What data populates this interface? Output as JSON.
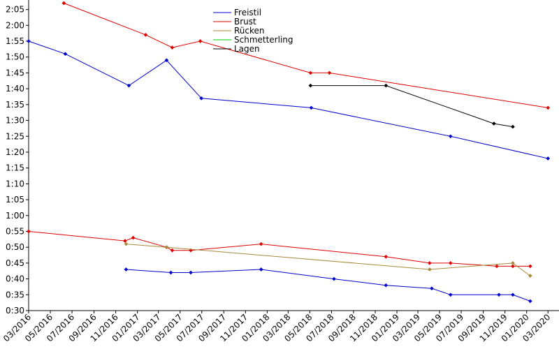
{
  "chart_data": {
    "type": "line",
    "title": "",
    "xlabel": "",
    "ylabel": "",
    "ylim": [
      "0:30",
      "2:08"
    ],
    "xlim": [
      "2016-03-01",
      "2020-04-01"
    ],
    "grid": false,
    "legend_position": "top-center",
    "x_tick_labels": [
      "03/2016",
      "05/2016",
      "07/2016",
      "09/2016",
      "11/2016",
      "01/2017",
      "03/2017",
      "05/2017",
      "07/2017",
      "09/2017",
      "11/2017",
      "01/2018",
      "03/2018",
      "05/2018",
      "07/2018",
      "09/2018",
      "11/2018",
      "01/2019",
      "03/2019",
      "05/2019",
      "07/2019",
      "09/2019",
      "11/2019",
      "01/2020",
      "03/2020"
    ],
    "y_tick_labels": [
      "0:30",
      "0:35",
      "0:40",
      "0:45",
      "0:50",
      "0:55",
      "1:00",
      "1:05",
      "1:10",
      "1:15",
      "1:20",
      "1:25",
      "1:30",
      "1:35",
      "1:40",
      "1:45",
      "1:50",
      "1:55",
      "2:00",
      "2:05"
    ],
    "legend": [
      "Freistil",
      "Brust",
      "Rücken",
      "Schmetterling",
      "Lagen"
    ],
    "series": [
      {
        "name": "Freistil",
        "color": "#0000cc",
        "points": [
          [
            "2016-03-01",
            "1:55"
          ],
          [
            "2016-06-12",
            "1:51"
          ],
          [
            "2016-12-08",
            "1:41"
          ],
          [
            "2017-03-24",
            "1:49"
          ],
          [
            "2017-06-30",
            "1:37"
          ],
          [
            "2018-05-05",
            "1:34"
          ],
          [
            "2019-06-01",
            "1:25"
          ],
          [
            "2020-03-01",
            "1:18"
          ]
        ]
      },
      {
        "name": "Brust",
        "color": "#dd0000",
        "points": [
          [
            "2016-06-08",
            "2:07"
          ],
          [
            "2017-01-24",
            "1:57"
          ],
          [
            "2017-04-09",
            "1:53"
          ],
          [
            "2017-06-27",
            "1:55"
          ],
          [
            "2018-05-03",
            "1:45"
          ],
          [
            "2018-06-25",
            "1:45"
          ],
          [
            "2020-03-01",
            "1:34"
          ]
        ]
      },
      {
        "name": "Freistil",
        "color": "#0000cc",
        "points": [
          [
            "2016-11-30",
            "0:43"
          ],
          [
            "2017-04-05",
            "0:42"
          ],
          [
            "2017-05-31",
            "0:42"
          ],
          [
            "2017-12-15",
            "0:43"
          ],
          [
            "2018-07-08",
            "0:40"
          ],
          [
            "2018-12-01",
            "0:38"
          ],
          [
            "2019-04-09",
            "0:37"
          ],
          [
            "2019-06-01",
            "0:35"
          ],
          [
            "2019-10-15",
            "0:35"
          ],
          [
            "2019-11-23",
            "0:35"
          ],
          [
            "2020-01-11",
            "0:33"
          ]
        ]
      },
      {
        "name": "Brust",
        "color": "#dd0000",
        "points": [
          [
            "2016-03-01",
            "0:55"
          ],
          [
            "2016-11-27",
            "0:52"
          ],
          [
            "2016-12-20",
            "0:53"
          ],
          [
            "2017-03-24",
            "0:50"
          ],
          [
            "2017-04-09",
            "0:49"
          ],
          [
            "2017-05-31",
            "0:49"
          ],
          [
            "2017-12-15",
            "0:51"
          ],
          [
            "2018-12-01",
            "0:47"
          ],
          [
            "2019-04-03",
            "0:45"
          ],
          [
            "2019-06-01",
            "0:45"
          ],
          [
            "2019-10-09",
            "0:44"
          ],
          [
            "2019-11-23",
            "0:44"
          ],
          [
            "2020-01-11",
            "0:44"
          ]
        ]
      },
      {
        "name": "Rücken",
        "color": "#a88a3a",
        "points": [
          [
            "2016-11-30",
            "0:51"
          ],
          [
            "2017-03-24",
            "0:50"
          ],
          [
            "2019-04-03",
            "0:43"
          ],
          [
            "2019-11-23",
            "0:45"
          ],
          [
            "2020-01-11",
            "0:41"
          ]
        ]
      },
      {
        "name": "Lagen",
        "color": "#000000",
        "points": [
          [
            "2018-05-03",
            "1:41"
          ],
          [
            "2018-12-01",
            "1:41"
          ],
          [
            "2019-10-01",
            "1:29"
          ],
          [
            "2019-11-23",
            "1:28"
          ]
        ]
      }
    ],
    "legend_colors": [
      "#0000cc",
      "#dd0000",
      "#a88a3a",
      "#00cc00",
      "#000000"
    ]
  }
}
